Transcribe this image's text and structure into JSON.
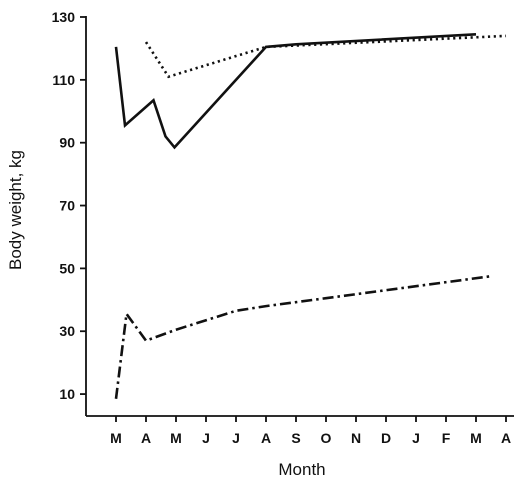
{
  "chart_data": {
    "type": "line",
    "xlabel": "Month",
    "ylabel": "Body weight, kg",
    "ylim": [
      0,
      130
    ],
    "yticks": [
      10,
      30,
      50,
      70,
      90,
      110,
      130
    ],
    "xlim": [
      -0.3,
      13
    ],
    "xtick_labels": [
      "M",
      "A",
      "M",
      "J",
      "J",
      "A",
      "S",
      "O",
      "N",
      "D",
      "J",
      "F",
      "M",
      "A"
    ],
    "grid": false,
    "series": [
      {
        "style": "solid",
        "points": [
          [
            0,
            120.5
          ],
          [
            0.3,
            95.5
          ],
          [
            1.25,
            103.5
          ],
          [
            1.65,
            92
          ],
          [
            1.95,
            88.5
          ],
          [
            5,
            120.5
          ],
          [
            6,
            121.3
          ],
          [
            12,
            124.5
          ]
        ]
      },
      {
        "style": "dotted",
        "points": [
          [
            1,
            122
          ],
          [
            1.75,
            111
          ],
          [
            5,
            120.5
          ],
          [
            13,
            124
          ]
        ]
      },
      {
        "style": "dash-dot",
        "points": [
          [
            0,
            8.5
          ],
          [
            0.35,
            35.5
          ],
          [
            1,
            27
          ],
          [
            2,
            30.5
          ],
          [
            4,
            36.5
          ],
          [
            5,
            38
          ],
          [
            7,
            40.5
          ],
          [
            12.5,
            47.5
          ]
        ]
      }
    ]
  }
}
